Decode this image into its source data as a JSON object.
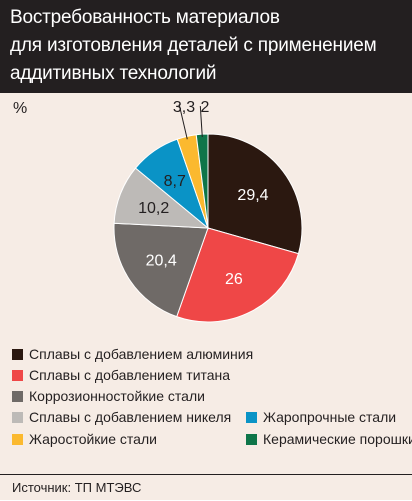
{
  "title_lines": [
    "Востребованность материалов",
    "для изготовления деталей с применением",
    "аддитивных технологий"
  ],
  "unit": "%",
  "source": "Источник: ТП МТЭВС",
  "chart_data": {
    "type": "pie",
    "start": "12 o'clock",
    "direction": "clockwise",
    "labels": [
      "Сплавы с добавлением алюминия",
      "Сплавы с добавлением титана",
      "Коррозионностойкие стали",
      "Сплавы с добавлением никеля",
      "Жаропрочные стали",
      "Жаростойкие стали",
      "Керамические порошки"
    ],
    "values": [
      29.4,
      26,
      20.4,
      10.2,
      8.7,
      3.3,
      2
    ],
    "value_labels": [
      "29,4",
      "26",
      "20,4",
      "10,2",
      "8,7",
      "3,3",
      "2"
    ],
    "colors": [
      "#2b1810",
      "#ef4747",
      "#6f6a67",
      "#bdbab7",
      "#0a93c6",
      "#fbb92f",
      "#0e7549"
    ],
    "label_colors": [
      "#ffffff",
      "#ffffff",
      "#ffffff",
      "#231f20",
      "#231f20",
      "#231f20",
      "#231f20"
    ],
    "legend_placement": "bottom"
  }
}
